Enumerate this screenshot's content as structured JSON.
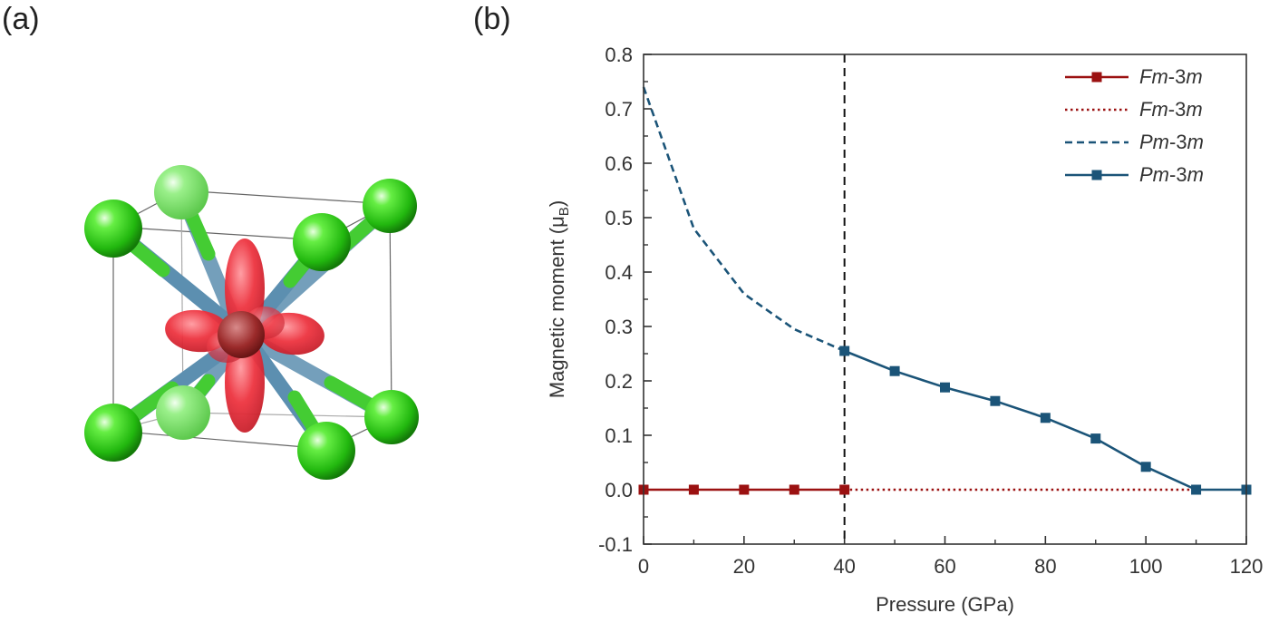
{
  "panels": {
    "a": "(a)",
    "b": "(b)"
  },
  "colors": {
    "fm": "#9b1111",
    "pm": "#1b5478",
    "ligand": "#33cc22",
    "bond_metal": "#5c8fb0",
    "orbital": "#e8404a",
    "cell_edge": "#666666"
  },
  "icons": [
    "crystal-structure-illustration"
  ],
  "chart_data": {
    "type": "line",
    "xlabel": "Pressure (GPa)",
    "ylabel_main": "Magnetic moment (",
    "ylabel_mu": "μ",
    "ylabel_sub": "B",
    "ylabel_close": ")",
    "xlim": [
      0,
      120
    ],
    "ylim": [
      -0.1,
      0.8
    ],
    "xticks": [
      0,
      20,
      40,
      60,
      80,
      100,
      120
    ],
    "xtick_labels": [
      "0",
      "20",
      "40",
      "60",
      "80",
      "100",
      "120"
    ],
    "yticks": [
      -0.1,
      0.0,
      0.1,
      0.2,
      0.3,
      0.4,
      0.5,
      0.6,
      0.7,
      0.8
    ],
    "ytick_labels": [
      "-0.1",
      "0.0",
      "0.1",
      "0.2",
      "0.3",
      "0.4",
      "0.5",
      "0.6",
      "0.7",
      "0.8"
    ],
    "vline_x": 40,
    "legend_position": "top-right",
    "series": [
      {
        "name_italic1": "Fm",
        "name_rest": "-3",
        "name_italic2": "m",
        "style": "solid-square",
        "color": "#9b1111",
        "x": [
          0,
          10,
          20,
          30,
          40
        ],
        "y": [
          0,
          0,
          0,
          0,
          0
        ]
      },
      {
        "name_italic1": "Fm",
        "name_rest": "-3",
        "name_italic2": "m",
        "style": "dotted",
        "color": "#9b1111",
        "x": [
          40,
          110
        ],
        "y": [
          0,
          0
        ]
      },
      {
        "name_italic1": "Pm",
        "name_rest": "-3",
        "name_italic2": "m",
        "style": "dashed",
        "color": "#1b5478",
        "x": [
          0,
          10,
          20,
          30,
          40
        ],
        "y": [
          0.74,
          0.48,
          0.36,
          0.295,
          0.255
        ]
      },
      {
        "name_italic1": "Pm",
        "name_rest": "-3",
        "name_italic2": "m",
        "style": "solid-square",
        "color": "#1b5478",
        "x": [
          40,
          50,
          60,
          70,
          80,
          90,
          100,
          110,
          120
        ],
        "y": [
          0.255,
          0.218,
          0.188,
          0.163,
          0.132,
          0.094,
          0.042,
          0.0,
          0.0
        ]
      }
    ]
  }
}
